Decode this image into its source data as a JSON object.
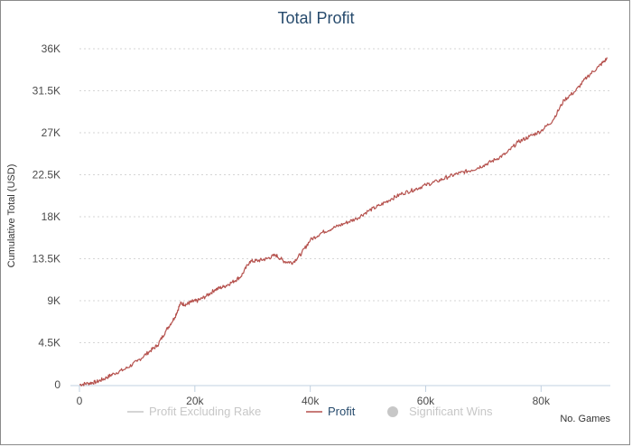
{
  "chart_data": {
    "type": "line",
    "title": "Total Profit",
    "xlabel": "No. Games",
    "ylabel": "Cumulative Total (USD)",
    "xlim": [
      0,
      92000
    ],
    "ylim": [
      0,
      36000
    ],
    "x_ticks": [
      0,
      20000,
      40000,
      60000,
      80000
    ],
    "x_tick_labels": [
      "0",
      "20k",
      "40k",
      "60k",
      "80k"
    ],
    "y_ticks": [
      0,
      4500,
      9000,
      13500,
      18000,
      22500,
      27000,
      31500,
      36000
    ],
    "y_tick_labels": [
      "0",
      "4.5K",
      "9K",
      "13.5K",
      "18K",
      "22.5K",
      "27K",
      "31.5K",
      "36K"
    ],
    "grid": true,
    "legend_position": "bottom-center",
    "legend": [
      {
        "label": "Profit Excluding Rake",
        "visible": false,
        "symbol": "line"
      },
      {
        "label": "Profit",
        "visible": true,
        "symbol": "line"
      },
      {
        "label": "Significant Wins",
        "visible": false,
        "symbol": "circle"
      }
    ],
    "series": [
      {
        "name": "Profit",
        "color": "#b5514d",
        "points": [
          [
            0,
            0
          ],
          [
            1500,
            150
          ],
          [
            3000,
            300
          ],
          [
            4500,
            700
          ],
          [
            6000,
            1200
          ],
          [
            8000,
            1700
          ],
          [
            10000,
            2500
          ],
          [
            12000,
            3500
          ],
          [
            13500,
            4200
          ],
          [
            15000,
            5800
          ],
          [
            16500,
            7200
          ],
          [
            17500,
            8700
          ],
          [
            18500,
            8600
          ],
          [
            19500,
            8900
          ],
          [
            20500,
            9000
          ],
          [
            22000,
            9500
          ],
          [
            23500,
            10200
          ],
          [
            25000,
            10500
          ],
          [
            26500,
            11000
          ],
          [
            28000,
            11600
          ],
          [
            29500,
            13200
          ],
          [
            31000,
            13300
          ],
          [
            32500,
            13500
          ],
          [
            34000,
            13900
          ],
          [
            35500,
            13200
          ],
          [
            37000,
            13100
          ],
          [
            38500,
            14100
          ],
          [
            40000,
            15500
          ],
          [
            42000,
            16300
          ],
          [
            44000,
            16800
          ],
          [
            46000,
            17300
          ],
          [
            48000,
            17800
          ],
          [
            50000,
            18600
          ],
          [
            52000,
            19200
          ],
          [
            54000,
            19900
          ],
          [
            56000,
            20500
          ],
          [
            58000,
            20900
          ],
          [
            60000,
            21400
          ],
          [
            62000,
            21800
          ],
          [
            64000,
            22300
          ],
          [
            66000,
            22700
          ],
          [
            68000,
            23000
          ],
          [
            70000,
            23500
          ],
          [
            72000,
            24100
          ],
          [
            74000,
            24800
          ],
          [
            76000,
            26000
          ],
          [
            78000,
            26600
          ],
          [
            80000,
            27200
          ],
          [
            82000,
            28300
          ],
          [
            84000,
            30500
          ],
          [
            86000,
            31500
          ],
          [
            88000,
            33000
          ],
          [
            90000,
            34100
          ],
          [
            91500,
            35000
          ]
        ]
      }
    ]
  }
}
